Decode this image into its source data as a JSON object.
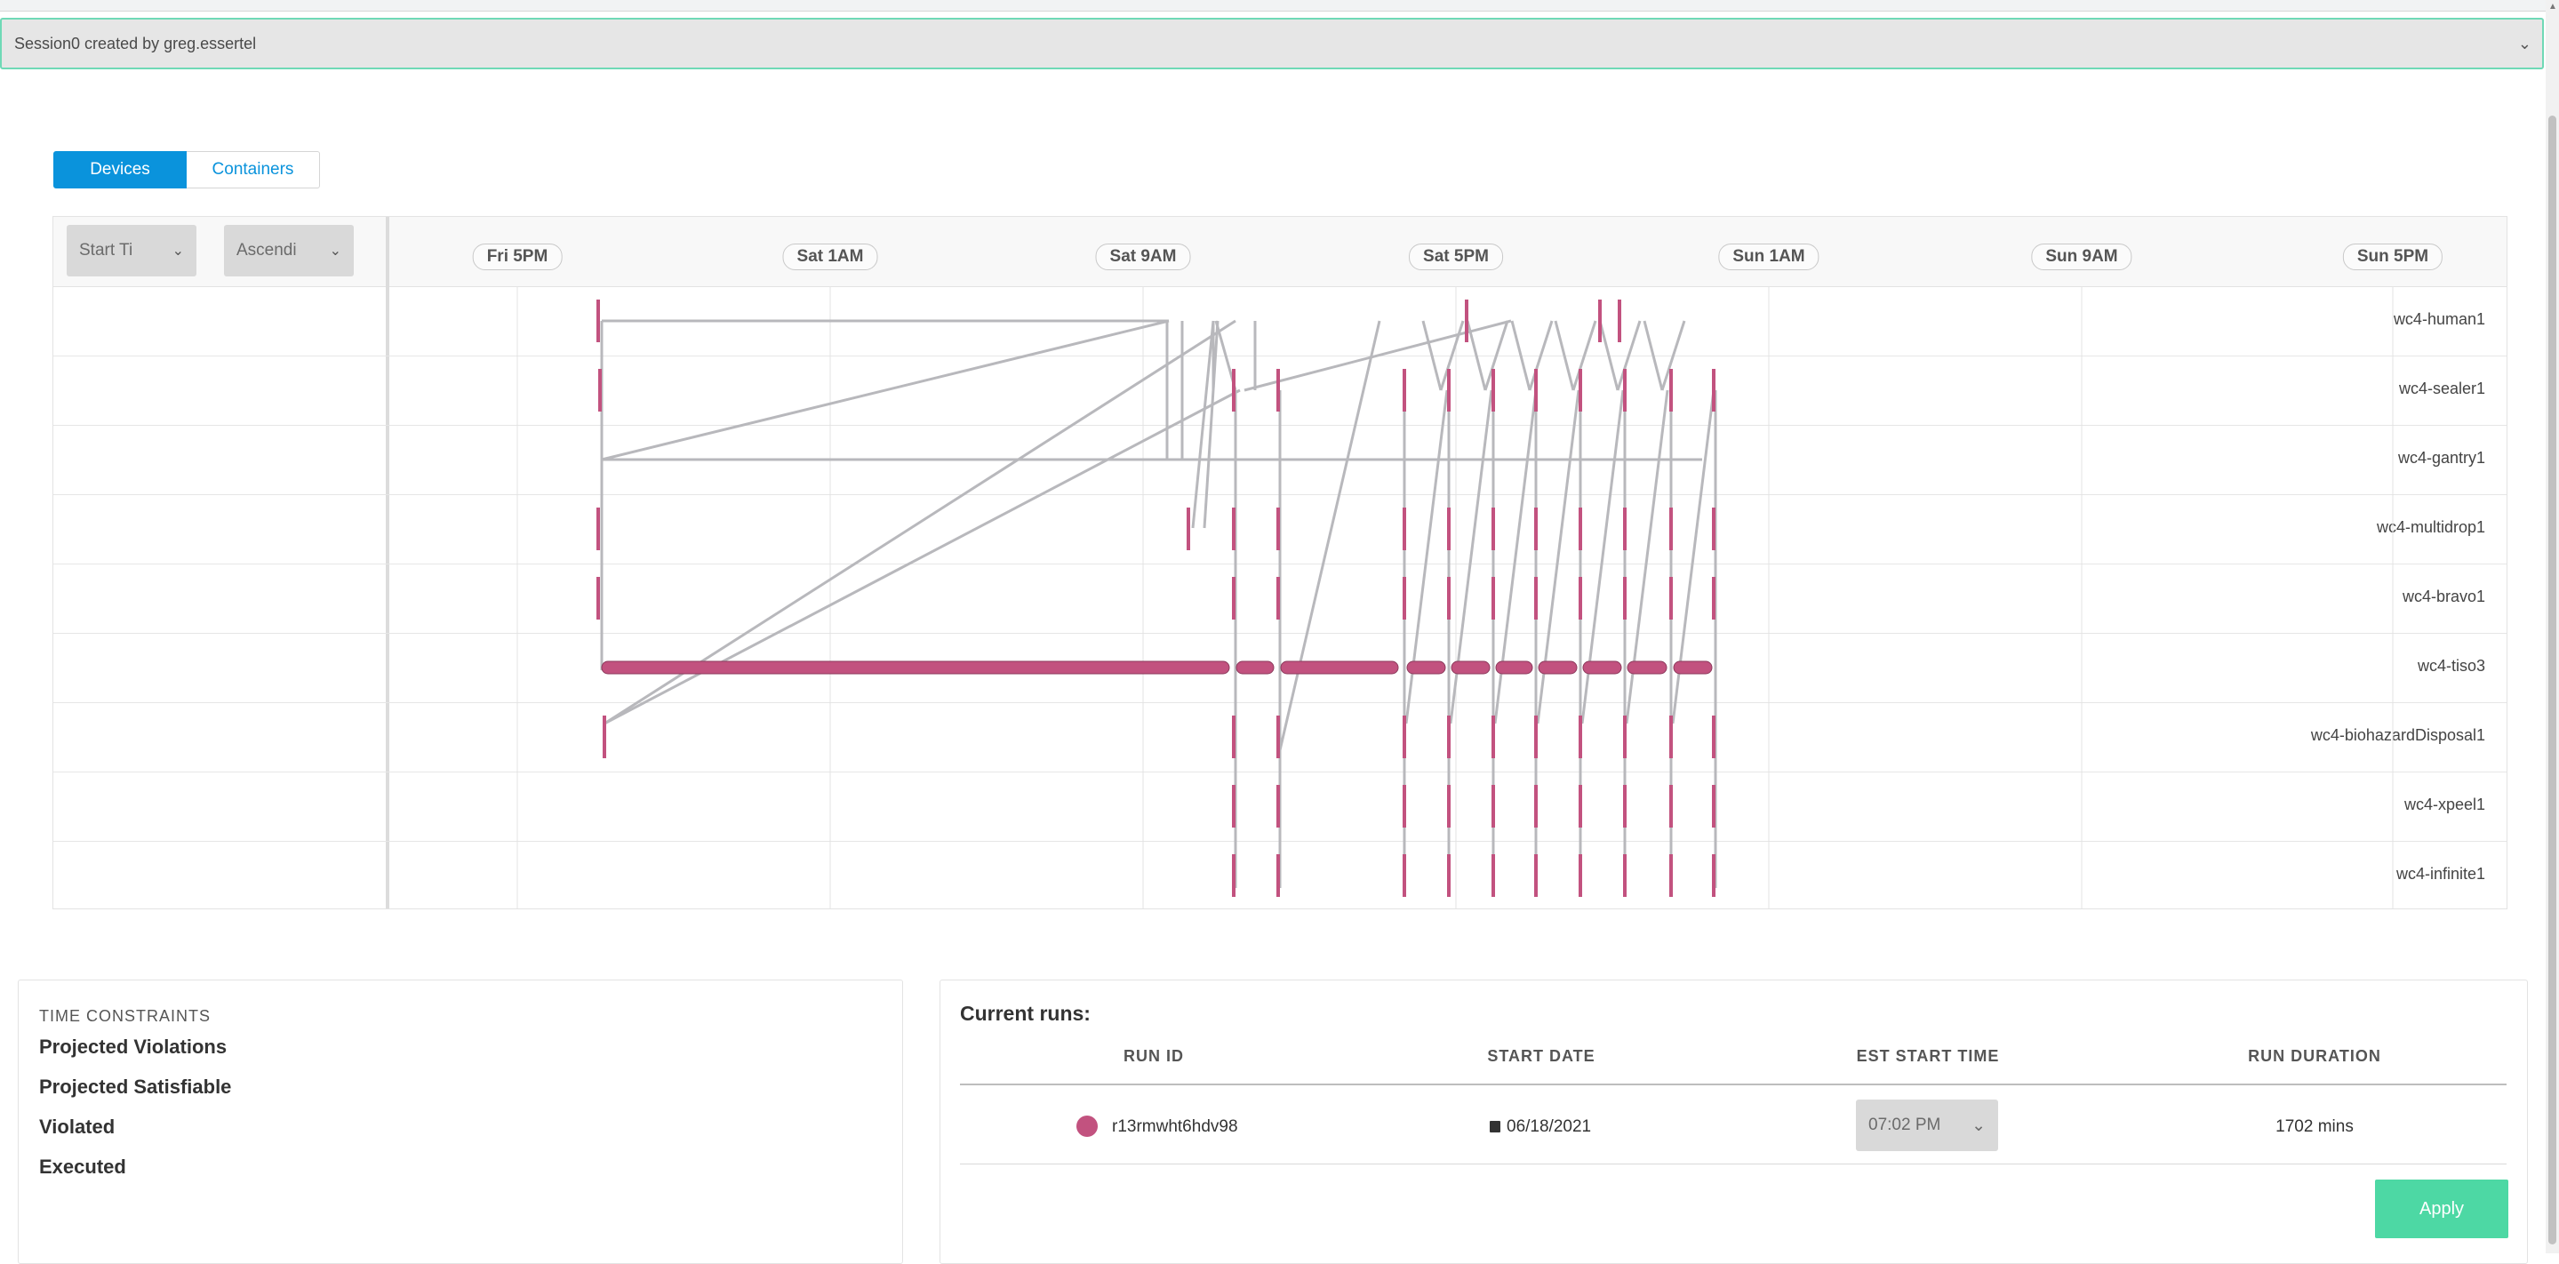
{
  "session": {
    "label": "Session0 created by greg.essertel"
  },
  "tabs": [
    {
      "label": "Devices",
      "active": true
    },
    {
      "label": "Containers",
      "active": false
    }
  ],
  "sort": {
    "field": "Start Ti",
    "order": "Ascendi"
  },
  "timeline": {
    "ticks": [
      "Fri 5PM",
      "Sat 1AM",
      "Sat 9AM",
      "Sat 5PM",
      "Sun 1AM",
      "Sun 9AM",
      "Sun 5PM"
    ],
    "devices": [
      "wc4-human1",
      "wc4-sealer1",
      "wc4-gantry1",
      "wc4-multidrop1",
      "wc4-bravo1",
      "wc4-tiso3",
      "wc4-biohazardDisposal1",
      "wc4-xpeel1",
      "wc4-infinite1"
    ],
    "task_color": "#c2527f",
    "link_color": "#b8b8bc"
  },
  "time_constraints": {
    "heading": "TIME CONSTRAINTS",
    "items": [
      "Projected Violations",
      "Projected Satisfiable",
      "Violated",
      "Executed"
    ]
  },
  "runs": {
    "title": "Current runs:",
    "columns": [
      "RUN ID",
      "START DATE",
      "EST START TIME",
      "RUN DURATION"
    ],
    "rows": [
      {
        "id": "r13rmwht6hdv98",
        "start_date": "06/18/2021",
        "est_start_time": "07:02 PM",
        "duration": "1702 mins",
        "color": "#c2527f"
      }
    ],
    "apply_label": "Apply"
  }
}
